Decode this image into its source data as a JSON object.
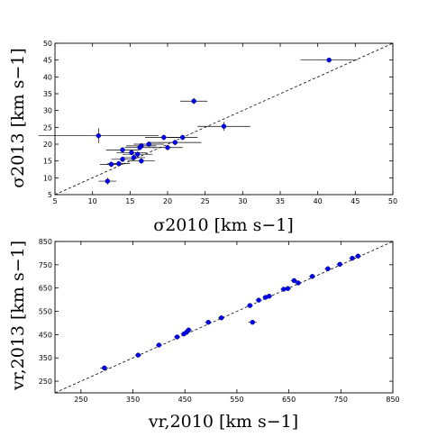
{
  "chart_data": [
    {
      "type": "scatter",
      "xlabel": "σ2010 [km s−1]",
      "ylabel": "σ2013 [km s−1]",
      "xlim": [
        5,
        50
      ],
      "ylim": [
        5,
        50
      ],
      "xticks": [
        5,
        10,
        15,
        20,
        25,
        30,
        35,
        40,
        45,
        50
      ],
      "yticks": [
        5,
        10,
        15,
        20,
        25,
        30,
        35,
        40,
        45,
        50
      ],
      "reference_line": "y = x (dashed)",
      "grid": false,
      "marker_color": "#0000ff",
      "errorbar_color": "#000000",
      "points": [
        {
          "x": 41.5,
          "y": 45.0,
          "xerr": 3.8,
          "yerr": 0.4
        },
        {
          "x": 23.5,
          "y": 32.8,
          "xerr": 1.8,
          "yerr": 0.9
        },
        {
          "x": 27.5,
          "y": 25.3,
          "xerr": 3.5,
          "yerr": 1.3
        },
        {
          "x": 10.8,
          "y": 22.5,
          "xerr": 8.0,
          "yerr": 2.2
        },
        {
          "x": 19.5,
          "y": 22.0,
          "xerr": 2.5,
          "yerr": 0.8
        },
        {
          "x": 22.0,
          "y": 22.0,
          "xerr": 2.0,
          "yerr": 0.8
        },
        {
          "x": 21.0,
          "y": 20.5,
          "xerr": 3.5,
          "yerr": 0.8
        },
        {
          "x": 17.5,
          "y": 20.0,
          "xerr": 2.0,
          "yerr": 0.8
        },
        {
          "x": 16.5,
          "y": 19.5,
          "xerr": 2.0,
          "yerr": 0.8
        },
        {
          "x": 16.3,
          "y": 19.0,
          "xerr": 2.0,
          "yerr": 0.8
        },
        {
          "x": 20.0,
          "y": 19.0,
          "xerr": 2.0,
          "yerr": 0.8
        },
        {
          "x": 14.0,
          "y": 18.3,
          "xerr": 2.2,
          "yerr": 0.8
        },
        {
          "x": 15.2,
          "y": 17.5,
          "xerr": 2.0,
          "yerr": 0.8
        },
        {
          "x": 16.0,
          "y": 17.0,
          "xerr": 2.0,
          "yerr": 0.8
        },
        {
          "x": 15.5,
          "y": 16.0,
          "xerr": 1.5,
          "yerr": 0.8
        },
        {
          "x": 14.0,
          "y": 15.5,
          "xerr": 1.5,
          "yerr": 0.8
        },
        {
          "x": 16.5,
          "y": 15.0,
          "xerr": 1.8,
          "yerr": 0.8
        },
        {
          "x": 13.5,
          "y": 14.2,
          "xerr": 1.5,
          "yerr": 0.8
        },
        {
          "x": 12.5,
          "y": 14.0,
          "xerr": 1.5,
          "yerr": 0.8
        },
        {
          "x": 12.0,
          "y": 9.0,
          "xerr": 1.2,
          "yerr": 1.0
        }
      ]
    },
    {
      "type": "scatter",
      "xlabel": "vr,2010 [km s−1]",
      "ylabel": "vr,2013 [km s−1]",
      "xlim": [
        200,
        850
      ],
      "ylim": [
        200,
        850
      ],
      "xticks": [
        250,
        350,
        450,
        550,
        650,
        750,
        850
      ],
      "yticks": [
        250,
        350,
        450,
        550,
        650,
        750,
        850
      ],
      "reference_line": "y = x (dashed)",
      "grid": false,
      "marker_color": "#0000ff",
      "errorbar_color": "#000000",
      "points": [
        {
          "x": 295,
          "y": 307,
          "xerr": 8,
          "yerr": 2
        },
        {
          "x": 360,
          "y": 362,
          "xerr": 6,
          "yerr": 2
        },
        {
          "x": 400,
          "y": 405,
          "xerr": 6,
          "yerr": 2
        },
        {
          "x": 435,
          "y": 440,
          "xerr": 6,
          "yerr": 2
        },
        {
          "x": 448,
          "y": 453,
          "xerr": 6,
          "yerr": 2
        },
        {
          "x": 453,
          "y": 460,
          "xerr": 6,
          "yerr": 2
        },
        {
          "x": 457,
          "y": 470,
          "xerr": 6,
          "yerr": 2
        },
        {
          "x": 495,
          "y": 503,
          "xerr": 6,
          "yerr": 2
        },
        {
          "x": 520,
          "y": 522,
          "xerr": 6,
          "yerr": 2
        },
        {
          "x": 580,
          "y": 503,
          "xerr": 8,
          "yerr": 2
        },
        {
          "x": 575,
          "y": 575,
          "xerr": 6,
          "yerr": 2
        },
        {
          "x": 592,
          "y": 598,
          "xerr": 6,
          "yerr": 2
        },
        {
          "x": 605,
          "y": 610,
          "xerr": 6,
          "yerr": 2
        },
        {
          "x": 612,
          "y": 615,
          "xerr": 6,
          "yerr": 2
        },
        {
          "x": 640,
          "y": 645,
          "xerr": 6,
          "yerr": 2
        },
        {
          "x": 648,
          "y": 648,
          "xerr": 6,
          "yerr": 2
        },
        {
          "x": 660,
          "y": 682,
          "xerr": 6,
          "yerr": 2
        },
        {
          "x": 668,
          "y": 672,
          "xerr": 6,
          "yerr": 2
        },
        {
          "x": 695,
          "y": 700,
          "xerr": 6,
          "yerr": 2
        },
        {
          "x": 725,
          "y": 733,
          "xerr": 6,
          "yerr": 2
        },
        {
          "x": 748,
          "y": 752,
          "xerr": 6,
          "yerr": 2
        },
        {
          "x": 772,
          "y": 778,
          "xerr": 6,
          "yerr": 2
        },
        {
          "x": 783,
          "y": 787,
          "xerr": 6,
          "yerr": 2
        }
      ]
    }
  ]
}
